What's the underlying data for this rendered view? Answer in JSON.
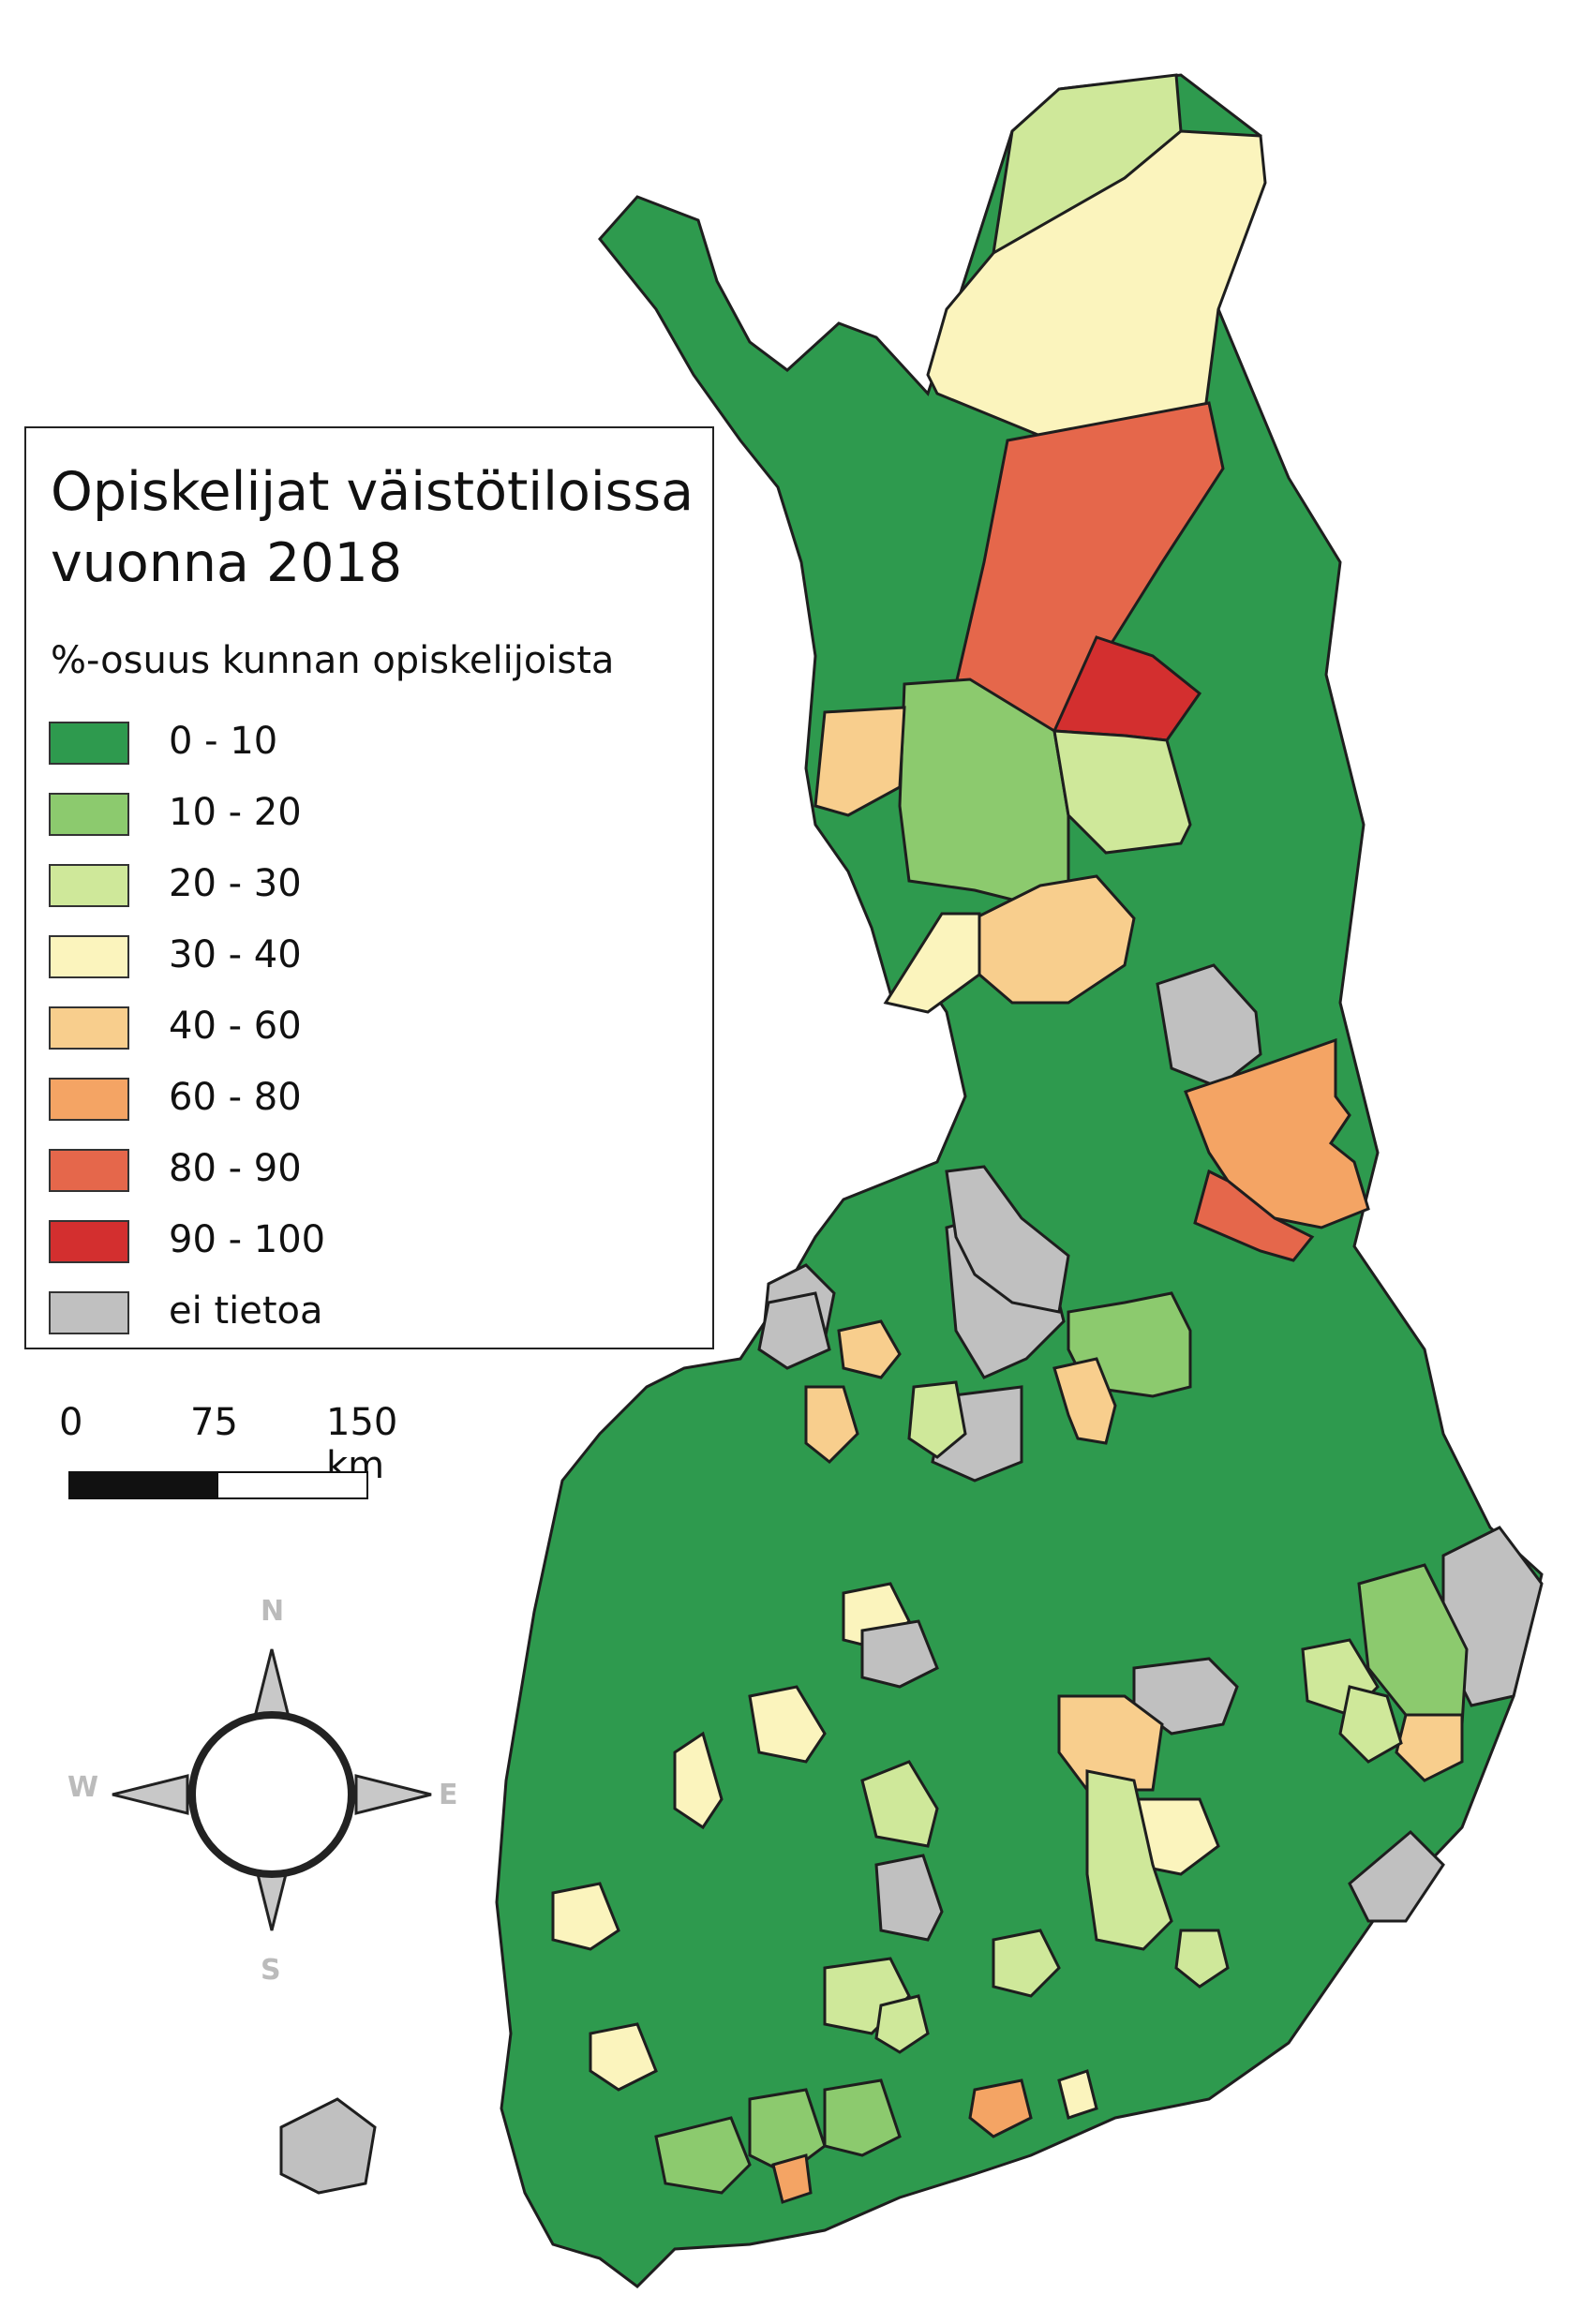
{
  "legend": {
    "title": "Opiskelijat väistötiloissa\nvuonna 2018",
    "subtitle": "%-osuus kunnan opiskelijoista",
    "items": [
      {
        "label": "0 - 10",
        "color": "#2e9a4e"
      },
      {
        "label": "10 - 20",
        "color": "#8cca6e"
      },
      {
        "label": "20 - 30",
        "color": "#cfe89a"
      },
      {
        "label": "30 - 40",
        "color": "#fbf4bd"
      },
      {
        "label": "40 - 60",
        "color": "#f8ce8d"
      },
      {
        "label": "60 - 80",
        "color": "#f4a464"
      },
      {
        "label": "80 - 90",
        "color": "#e5674b"
      },
      {
        "label": "90 - 100",
        "color": "#d32f2f"
      },
      {
        "label": "ei tietoa",
        "color": "#c0c0c0"
      }
    ]
  },
  "scalebar": {
    "labels": [
      "0",
      "75",
      "150 km"
    ]
  },
  "compass": {
    "n": "N",
    "s": "S",
    "e": "E",
    "w": "W"
  }
}
